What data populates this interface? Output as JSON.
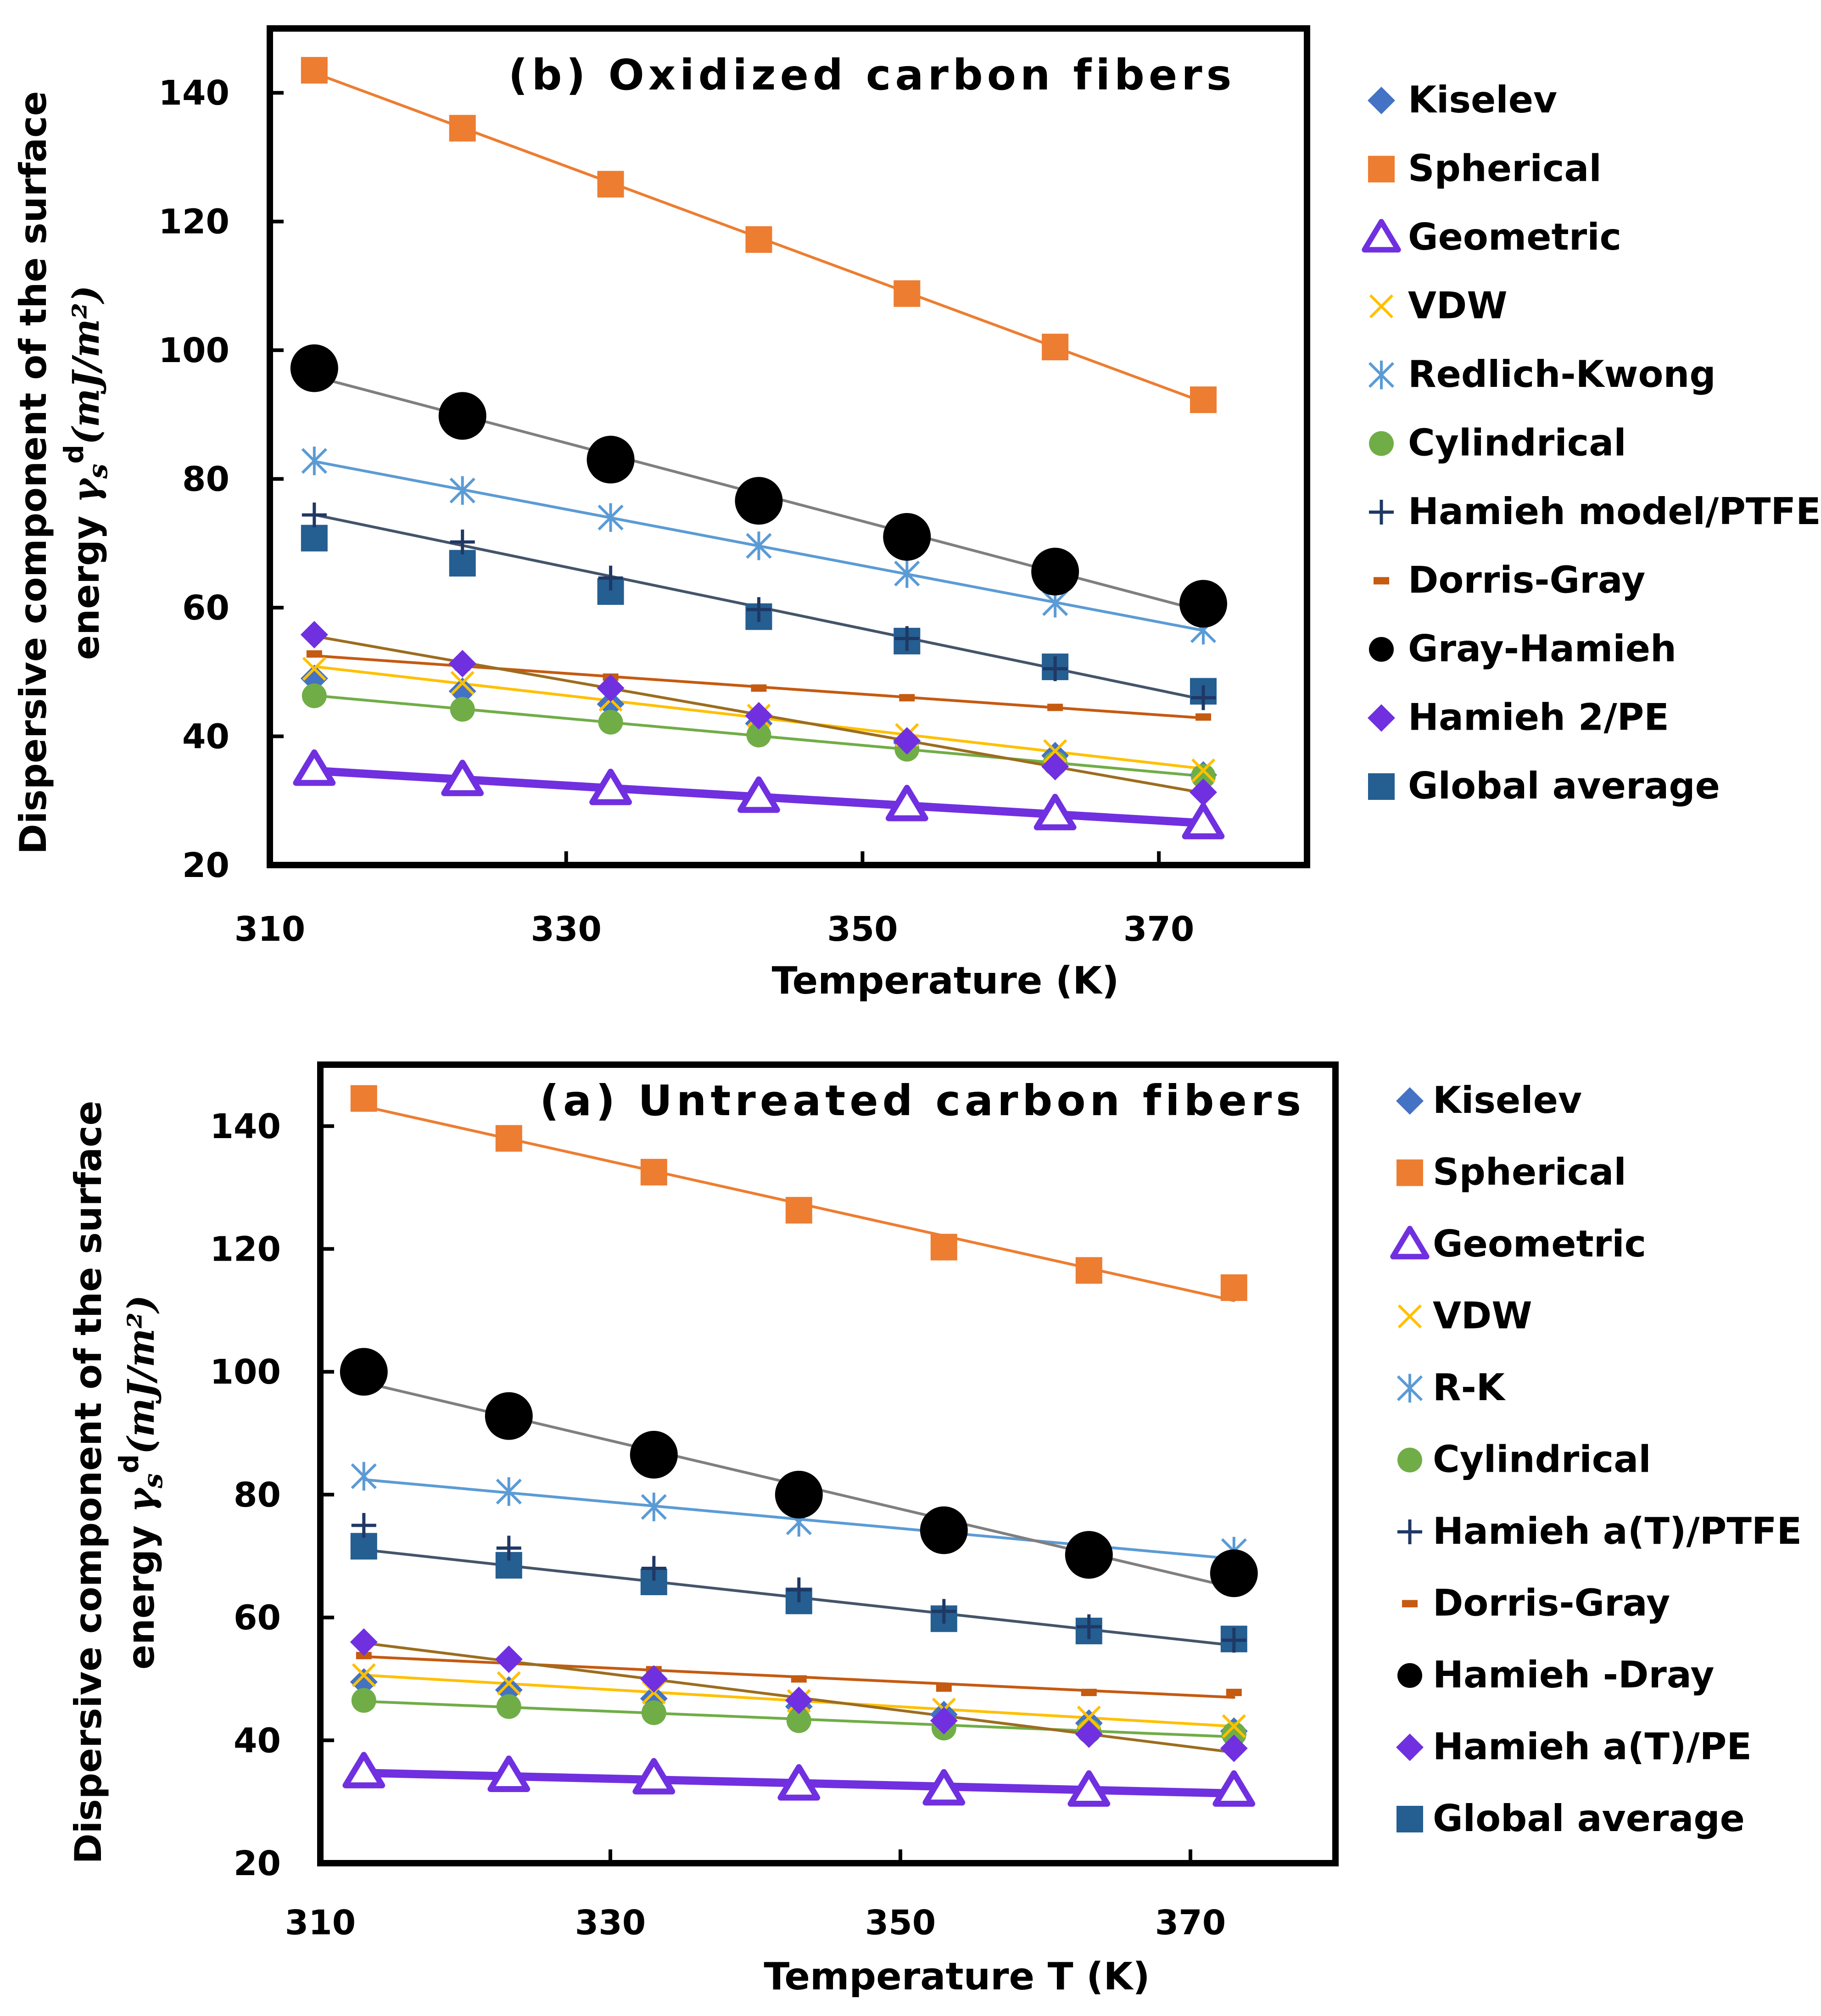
{
  "colors": {
    "Kiselev": "#4472c4",
    "Spherical": "#ed7d31",
    "Geometric": "#7030e0",
    "VDW": "#ffc000",
    "RK": "#5b9bd5",
    "Cylindrical": "#70ad47",
    "HamiehPTFE": "#1f3864",
    "DorrisGray": "#c55a11",
    "GrayHamieh": "#000000",
    "HamiehPE": "#7030e0",
    "Global": "#255e91",
    "fit_gray": "#7f7f7f",
    "fit_ptfe": "#44546a",
    "fit_pe": "#9c6d1f"
  },
  "chart_data": [
    {
      "id": "oxidized",
      "type": "scatter",
      "title": "(b) Oxidized carbon fibers",
      "xlabel": "Temperature (K)",
      "ylabel_line1": "Dispersive component of the surface",
      "ylabel_line2_prefix": "energy ",
      "ylabel_symbol": "γ",
      "ylabel_sub": "s",
      "ylabel_sup": "d",
      "ylabel_units": "(mJ/m²)",
      "xlim": [
        310,
        380
      ],
      "ylim": [
        20,
        150
      ],
      "xticks": [
        "310",
        "330",
        "350",
        "370"
      ],
      "yticks": [
        "20",
        "40",
        "60",
        "80",
        "100",
        "120",
        "140"
      ],
      "x": [
        313,
        323,
        333,
        343,
        353,
        363,
        373
      ],
      "series": [
        {
          "key": "Kiselev",
          "name": "Kiselev",
          "marker": "diamond",
          "values": [
            49,
            47,
            45,
            42,
            39,
            37,
            34
          ]
        },
        {
          "key": "Cylindrical",
          "name": "Cylindrical",
          "marker": "circle",
          "values": [
            46.3,
            44.2,
            42.2,
            40.2,
            38,
            35.8,
            33.8
          ],
          "fit": true
        },
        {
          "key": "VDW",
          "name": "VDW",
          "marker": "x",
          "values": [
            50.5,
            48.3,
            45.7,
            43.2,
            40.2,
            37.7,
            34.7
          ],
          "fit": true
        },
        {
          "key": "DorrisGray",
          "name": "Dorris-Gray",
          "marker": "dash",
          "values": [
            52.8,
            50.8,
            49.2,
            47.5,
            46,
            44.5,
            43
          ],
          "fit": true
        },
        {
          "key": "HamiehPE",
          "name": "Hamieh 2/PE",
          "marker": "diamond",
          "values": [
            55.8,
            51.3,
            47.5,
            43.2,
            39.3,
            35.3,
            31.3
          ],
          "fit": true,
          "fitColor": "fit_pe"
        },
        {
          "key": "Global",
          "name": "Global average",
          "marker": "square",
          "values": [
            70.8,
            66.9,
            62.5,
            58.6,
            54.8,
            50.8,
            47
          ]
        },
        {
          "key": "HamiehPTFE",
          "name": "Hamieh model/PTFE",
          "marker": "plus",
          "values": [
            74.4,
            70.2,
            64.6,
            59.7,
            55.2,
            50.5,
            46
          ],
          "fit": true,
          "fitColor": "fit_ptfe"
        },
        {
          "key": "RK",
          "name": "Redlich-Kwong",
          "marker": "star",
          "values": [
            82.8,
            78.2,
            74,
            69.6,
            65.3,
            60.7,
            56.5
          ],
          "fit": true
        },
        {
          "key": "GrayHamieh",
          "name": "Gray-Hamieh",
          "marker": "bigcircle",
          "values": [
            97.2,
            89.8,
            83,
            76.6,
            71,
            65.6,
            60.6
          ],
          "fit": true,
          "fitColor": "fit_gray"
        },
        {
          "key": "Geometric",
          "name": "Geometric",
          "marker": "triangle",
          "values": [
            34.8,
            33.2,
            31.8,
            30.6,
            29.3,
            27.9,
            26.5
          ],
          "fit": true,
          "thick": true
        },
        {
          "key": "Spherical",
          "name": "Spherical",
          "marker": "square",
          "values": [
            143.5,
            134.5,
            125.8,
            117.2,
            108.8,
            100.5,
            92.3
          ],
          "fit": true
        }
      ],
      "legend": [
        {
          "key": "Kiselev",
          "marker": "diamond",
          "label": "Kiselev"
        },
        {
          "key": "Spherical",
          "marker": "square",
          "label": "Spherical"
        },
        {
          "key": "Geometric",
          "marker": "triangle",
          "label": "Geometric"
        },
        {
          "key": "VDW",
          "marker": "x",
          "label": "VDW"
        },
        {
          "key": "RK",
          "marker": "star",
          "label": "Redlich-Kwong"
        },
        {
          "key": "Cylindrical",
          "marker": "circle",
          "label": "Cylindrical"
        },
        {
          "key": "HamiehPTFE",
          "marker": "plus",
          "label": "Hamieh model/PTFE"
        },
        {
          "key": "DorrisGray",
          "marker": "dash",
          "label": "Dorris-Gray"
        },
        {
          "key": "GrayHamieh",
          "marker": "circle",
          "label": "Gray-Hamieh"
        },
        {
          "key": "HamiehPE",
          "marker": "diamond",
          "label": "Hamieh 2/PE"
        },
        {
          "key": "Global",
          "marker": "square",
          "label": "Global average"
        }
      ]
    },
    {
      "id": "untreated",
      "type": "scatter",
      "title": "(a) Untreated carbon fibers",
      "xlabel": "Temperature T (K)",
      "ylabel_line1": "Dispersive component of the surface",
      "ylabel_line2_prefix": "energy ",
      "ylabel_symbol": "γ",
      "ylabel_sub": "s",
      "ylabel_sup": "d",
      "ylabel_units": "(mJ/m²)",
      "xlim": [
        310,
        380
      ],
      "ylim": [
        20,
        150
      ],
      "xticks": [
        "310",
        "330",
        "350",
        "370"
      ],
      "yticks": [
        "20",
        "40",
        "60",
        "80",
        "100",
        "120",
        "140"
      ],
      "x": [
        313,
        323,
        333,
        343,
        353,
        363,
        373
      ],
      "series": [
        {
          "key": "Kiselev",
          "name": "Kiselev",
          "marker": "diamond",
          "values": [
            49.5,
            48.2,
            46.8,
            45.5,
            44.2,
            42.8,
            41.5
          ]
        },
        {
          "key": "Cylindrical",
          "name": "Cylindrical",
          "marker": "circle",
          "values": [
            46.5,
            45.5,
            44.5,
            43.2,
            42,
            41.5,
            41
          ],
          "fit": true
        },
        {
          "key": "VDW",
          "name": "VDW",
          "marker": "x",
          "values": [
            50.6,
            49.3,
            47.8,
            46.4,
            45,
            43.7,
            42.3
          ],
          "fit": true
        },
        {
          "key": "DorrisGray",
          "name": "Dorris-Gray",
          "marker": "dash",
          "values": [
            53.8,
            52.8,
            51.5,
            50,
            48.5,
            47.8,
            47.8
          ],
          "fit": true
        },
        {
          "key": "HamiehPE",
          "name": "Hamieh a(T)/PE",
          "marker": "diamond",
          "values": [
            56,
            53.2,
            50,
            46.5,
            43.2,
            41,
            38.7
          ],
          "fit": true,
          "fitColor": "fit_pe"
        },
        {
          "key": "Global",
          "name": "Global average",
          "marker": "square",
          "values": [
            71.6,
            68.5,
            65.8,
            62.7,
            59.8,
            57.8,
            56.5
          ],
          "fit": true,
          "fitColor": "fit_ptfe"
        },
        {
          "key": "HamiehPTFE",
          "name": "Hamieh a(T)/PTFE",
          "marker": "plus",
          "values": [
            75,
            71.3,
            68,
            64.5,
            61,
            58.5,
            56.3
          ]
        },
        {
          "key": "RK",
          "name": "R-K",
          "marker": "star",
          "values": [
            83,
            80.5,
            78,
            75.5,
            73,
            71.2,
            70.8
          ],
          "fit": true
        },
        {
          "key": "GrayHamieh",
          "name": "Hamieh -Dray",
          "marker": "bigcircle",
          "values": [
            100,
            92.8,
            86.5,
            80,
            74.2,
            70.2,
            67.2
          ],
          "fit": true,
          "fitColor": "fit_gray"
        },
        {
          "key": "Geometric",
          "name": "Geometric",
          "marker": "triangle",
          "values": [
            34.8,
            34.2,
            33.8,
            32.8,
            32,
            31.8,
            31.8
          ],
          "fit": true,
          "thick": true
        },
        {
          "key": "Spherical",
          "name": "Spherical",
          "marker": "square",
          "values": [
            144.5,
            138,
            132.5,
            126.3,
            120.3,
            116.5,
            113.7
          ],
          "fit": true
        }
      ],
      "legend": [
        {
          "key": "Kiselev",
          "marker": "diamond",
          "label": "Kiselev"
        },
        {
          "key": "Spherical",
          "marker": "square",
          "label": "Spherical"
        },
        {
          "key": "Geometric",
          "marker": "triangle",
          "label": "Geometric"
        },
        {
          "key": "VDW",
          "marker": "x",
          "label": "VDW"
        },
        {
          "key": "RK",
          "marker": "star",
          "label": "R-K"
        },
        {
          "key": "Cylindrical",
          "marker": "circle",
          "label": "Cylindrical"
        },
        {
          "key": "HamiehPTFE",
          "marker": "plus",
          "label": "Hamieh a(T)/PTFE"
        },
        {
          "key": "DorrisGray",
          "marker": "dash",
          "label": "Dorris-Gray"
        },
        {
          "key": "GrayHamieh",
          "marker": "circle",
          "label": "Hamieh -Dray"
        },
        {
          "key": "HamiehPE",
          "marker": "diamond",
          "label": "Hamieh a(T)/PE"
        },
        {
          "key": "Global",
          "marker": "square",
          "label": "Global average"
        }
      ]
    }
  ]
}
